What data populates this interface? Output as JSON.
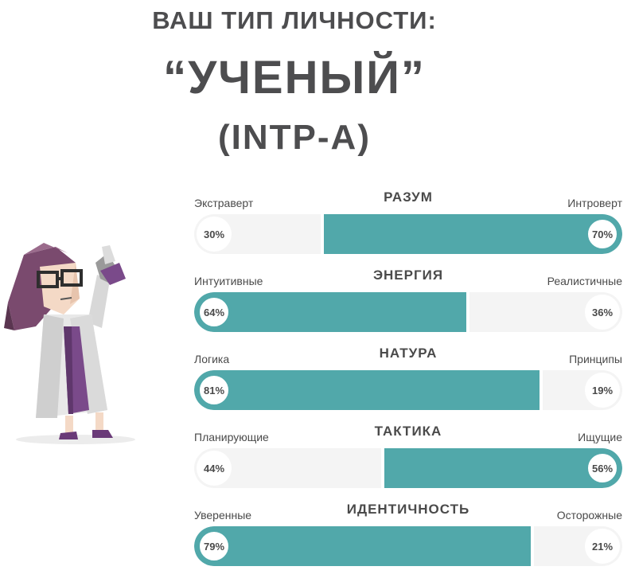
{
  "header": {
    "line1": "ВАШ ТИП ЛИЧНОСТИ:",
    "line2": "“УЧЕНЫЙ”",
    "line3": "(INTP-A)"
  },
  "colors": {
    "accent": "#51a8aa",
    "track": "#f4f4f4",
    "text": "#4a4a4a"
  },
  "traits": [
    {
      "title": "РАЗУМ",
      "left_label": "Экстраверт",
      "right_label": "Интроверт",
      "left_pct": "30%",
      "right_pct": "70%",
      "left_value": 30,
      "dominant": "right"
    },
    {
      "title": "ЭНЕРГИЯ",
      "left_label": "Интуитивные",
      "right_label": "Реалистичные",
      "left_pct": "64%",
      "right_pct": "36%",
      "left_value": 64,
      "dominant": "left"
    },
    {
      "title": "НАТУРА",
      "left_label": "Логика",
      "right_label": "Принципы",
      "left_pct": "81%",
      "right_pct": "19%",
      "left_value": 81,
      "dominant": "left"
    },
    {
      "title": "ТАКТИКА",
      "left_label": "Планирующие",
      "right_label": "Ищущие",
      "left_pct": "44%",
      "right_pct": "56%",
      "left_value": 44,
      "dominant": "right"
    },
    {
      "title": "ИДЕНТИЧНОСТЬ",
      "left_label": "Уверенные",
      "right_label": "Осторожные",
      "left_pct": "79%",
      "right_pct": "21%",
      "left_value": 79,
      "dominant": "left"
    }
  ]
}
